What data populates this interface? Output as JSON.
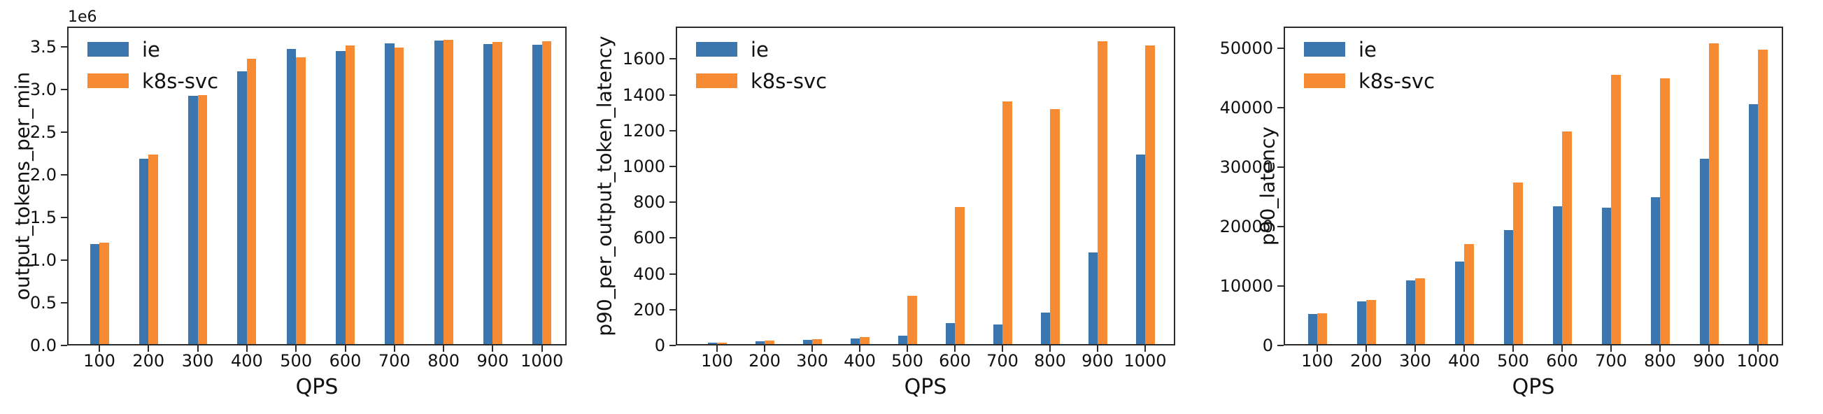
{
  "figure": {
    "background": "#ffffff",
    "spine_color": "#2b2b2b",
    "text_color": "#111111"
  },
  "legend": {
    "position": "upper left",
    "items": [
      {
        "label": "ie",
        "color": "#3b76af"
      },
      {
        "label": "k8s-svc",
        "color": "#f78b33"
      }
    ]
  },
  "chart_data": [
    {
      "type": "bar",
      "title": "",
      "xlabel": "QPS",
      "ylabel": "output_tokens_per_min",
      "offset_label": "1e6",
      "grid": false,
      "legend_position": "upper left",
      "categories": [
        "100",
        "200",
        "300",
        "400",
        "500",
        "600",
        "700",
        "800",
        "900",
        "1000"
      ],
      "series": [
        {
          "name": "ie",
          "color": "#3b76af",
          "values": [
            1170000,
            2170000,
            2910000,
            3200000,
            3460000,
            3440000,
            3530000,
            3560000,
            3520000,
            3510000
          ]
        },
        {
          "name": "k8s-svc",
          "color": "#f78b33",
          "values": [
            1190000,
            2220000,
            2920000,
            3350000,
            3360000,
            3500000,
            3480000,
            3570000,
            3540000,
            3550000
          ]
        }
      ],
      "yticks": [
        0,
        500000,
        1000000,
        1500000,
        2000000,
        2500000,
        3000000,
        3500000
      ],
      "ytick_labels": [
        "0.0",
        "0.5",
        "1.0",
        "1.5",
        "2.0",
        "2.5",
        "3.0",
        "3.5"
      ],
      "ylim": [
        0,
        3740000
      ]
    },
    {
      "type": "bar",
      "title": "",
      "xlabel": "QPS",
      "ylabel": "p90_per_output_token_latency",
      "offset_label": "",
      "grid": false,
      "legend_position": "upper left",
      "categories": [
        "100",
        "200",
        "300",
        "400",
        "500",
        "600",
        "700",
        "800",
        "900",
        "1000"
      ],
      "series": [
        {
          "name": "ie",
          "color": "#3b76af",
          "values": [
            8,
            17,
            25,
            32,
            47,
            117,
            108,
            176,
            511,
            1058
          ]
        },
        {
          "name": "k8s-svc",
          "color": "#f78b33",
          "values": [
            9,
            18,
            26,
            38,
            270,
            765,
            1355,
            1312,
            1693,
            1667
          ]
        }
      ],
      "yticks": [
        0,
        200,
        400,
        600,
        800,
        1000,
        1200,
        1400,
        1600
      ],
      "ytick_labels": [
        "0",
        "200",
        "400",
        "600",
        "800",
        "1000",
        "1200",
        "1400",
        "1600"
      ],
      "ylim": [
        0,
        1781
      ]
    },
    {
      "type": "bar",
      "title": "",
      "xlabel": "QPS",
      "ylabel": "p90_latency",
      "offset_label": "",
      "grid": false,
      "legend_position": "upper left",
      "categories": [
        "100",
        "200",
        "300",
        "400",
        "500",
        "600",
        "700",
        "800",
        "900",
        "1000"
      ],
      "series": [
        {
          "name": "ie",
          "color": "#3b76af",
          "values": [
            5000,
            7200,
            10700,
            13900,
            19200,
            23100,
            22900,
            24700,
            31200,
            40300
          ]
        },
        {
          "name": "k8s-svc",
          "color": "#f78b33",
          "values": [
            5200,
            7400,
            11000,
            16800,
            27200,
            35700,
            45300,
            44700,
            50500,
            49500
          ]
        }
      ],
      "yticks": [
        0,
        10000,
        20000,
        30000,
        40000,
        50000
      ],
      "ytick_labels": [
        "0",
        "10000",
        "20000",
        "30000",
        "40000",
        "50000"
      ],
      "ylim": [
        0,
        53600
      ]
    }
  ]
}
